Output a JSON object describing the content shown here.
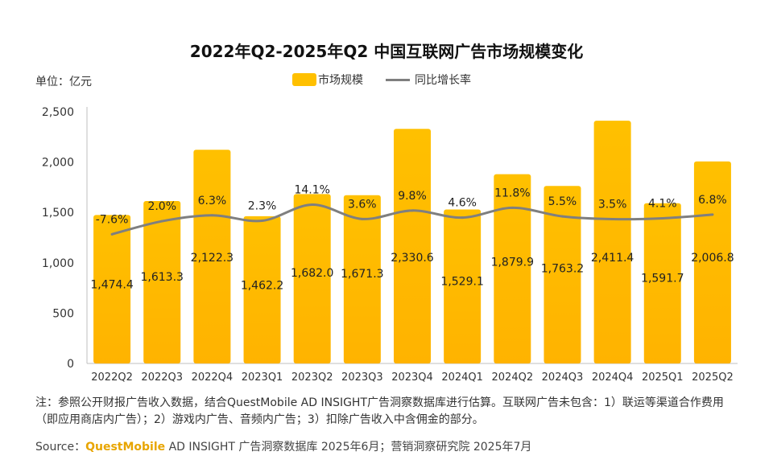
{
  "title": "2022年Q2-2025年Q2 中国互联网广告市场规模变化",
  "unit_label": "单位：亿元",
  "legend": {
    "bar_label": "市场规模",
    "line_label": "同比增长率"
  },
  "colors": {
    "bar": "#FFC000",
    "line": "#7F7F7F"
  },
  "chart_data": {
    "type": "bar",
    "categories": [
      "2022Q2",
      "2022Q3",
      "2022Q4",
      "2023Q1",
      "2023Q2",
      "2023Q3",
      "2023Q4",
      "2024Q1",
      "2024Q2",
      "2024Q3",
      "2024Q4",
      "2025Q1",
      "2025Q2"
    ],
    "series": [
      {
        "name": "市场规模",
        "type": "bar",
        "values": [
          1474.4,
          1613.3,
          2122.3,
          1462.2,
          1682.0,
          1671.3,
          2330.6,
          1529.1,
          1879.9,
          1763.2,
          2411.4,
          1591.7,
          2006.8
        ],
        "labels": [
          "1,474.4",
          "1,613.3",
          "2,122.3",
          "1,462.2",
          "1,682.0",
          "1,671.3",
          "2,330.6",
          "1,529.1",
          "1,879.9",
          "1,763.2",
          "2,411.4",
          "1,591.7",
          "2,006.8"
        ]
      },
      {
        "name": "同比增长率",
        "type": "line",
        "values": [
          -7.6,
          2.0,
          6.3,
          2.3,
          14.1,
          3.6,
          9.8,
          4.6,
          11.8,
          5.5,
          3.5,
          4.1,
          6.8
        ],
        "labels": [
          "-7.6%",
          "2.0%",
          "6.3%",
          "2.3%",
          "14.1%",
          "3.6%",
          "9.8%",
          "4.6%",
          "11.8%",
          "5.5%",
          "3.5%",
          "4.1%",
          "6.8%"
        ]
      }
    ],
    "ylim": [
      0,
      2500
    ],
    "yticks": [
      0,
      500,
      1000,
      1500,
      2000,
      2500
    ],
    "ytick_labels": [
      "0",
      "500",
      "1,000",
      "1,500",
      "2,000",
      "2,500"
    ],
    "legend_position": "top-center",
    "grid": false
  },
  "note": "注：参照公开财报广告收入数据，结合QuestMobile AD INSIGHT广告洞察数据库进行估算。互联网广告未包含：1）联运等渠道合作费用（即应用商店内广告）；2）游戏内广告、音频内广告；3）扣除广告收入中含佣金的部分。",
  "source": {
    "prefix": "Source：",
    "brand": "QuestMobile",
    "text": " AD INSIGHT 广告洞察数据库 2025年6月；营销洞察研究院 2025年7月"
  }
}
